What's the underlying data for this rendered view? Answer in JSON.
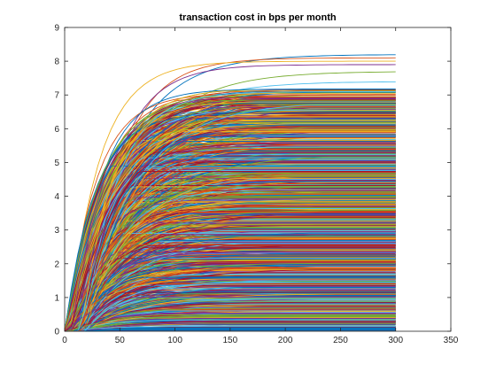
{
  "chart_data": {
    "type": "line",
    "title": "transaction cost in bps per month",
    "xlabel": "",
    "ylabel": "",
    "xlim": [
      0,
      350
    ],
    "ylim": [
      0,
      9
    ],
    "x_ticks": [
      0,
      50,
      100,
      150,
      200,
      250,
      300,
      350
    ],
    "y_ticks": [
      0,
      1,
      2,
      3,
      4,
      5,
      6,
      7,
      8,
      9
    ],
    "x_range_of_data": [
      0,
      300
    ],
    "grid": false,
    "legend": "none",
    "series_count_estimate": 1500,
    "curve_shape": "saturating rise from 0 to a plateau, then constant to x=300",
    "plateau_levels_sample": [
      0.1,
      0.2,
      0.35,
      0.5,
      0.6,
      0.8,
      1.0,
      1.2,
      1.4,
      1.5,
      1.7,
      1.9,
      2.0,
      2.2,
      2.4,
      2.5,
      2.7,
      2.9,
      3.0,
      3.2,
      3.4,
      3.5,
      3.7,
      3.9,
      4.0,
      4.2,
      4.4,
      4.5,
      4.7,
      4.9,
      5.0,
      5.2,
      5.4,
      5.5,
      5.7,
      5.9,
      6.0,
      6.2,
      6.4,
      6.6,
      6.8,
      7.0,
      7.2,
      7.4,
      7.6,
      7.8,
      8.0,
      8.2
    ],
    "top_series_endpoints": [
      8.2,
      8.1,
      8.0,
      7.9,
      7.7,
      7.4,
      7.0
    ],
    "color_order": [
      "#0072bd",
      "#d95319",
      "#edb120",
      "#7e2f8e",
      "#77ac30",
      "#4dbeee",
      "#a2142f"
    ]
  }
}
